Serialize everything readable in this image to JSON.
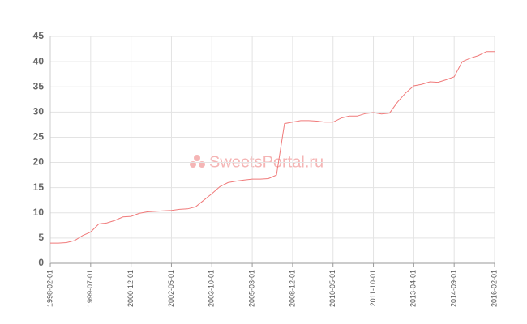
{
  "chart_data": {
    "type": "line",
    "watermark": "SweetsPortal.ru",
    "categories": [
      "1998-02-01",
      null,
      null,
      null,
      null,
      "1999-07-01",
      null,
      null,
      null,
      null,
      "2000-12-01",
      null,
      null,
      null,
      null,
      "2002-05-01",
      null,
      null,
      null,
      null,
      "2003-10-01",
      null,
      null,
      null,
      null,
      "2005-03-01",
      null,
      null,
      null,
      null,
      "2008-12-01",
      null,
      null,
      null,
      null,
      "2010-05-01",
      null,
      null,
      null,
      null,
      "2011-10-01",
      null,
      null,
      null,
      null,
      "2013-04-01",
      null,
      null,
      null,
      null,
      "2014-09-01",
      null,
      null,
      null,
      null,
      "2016-02-01"
    ],
    "values": [
      4.0,
      4.0,
      4.1,
      4.5,
      5.5,
      6.2,
      7.8,
      8.0,
      8.5,
      9.2,
      9.3,
      9.9,
      10.2,
      10.3,
      10.4,
      10.5,
      10.7,
      10.8,
      11.2,
      12.5,
      13.8,
      15.2,
      16.0,
      16.3,
      16.5,
      16.7,
      16.7,
      16.8,
      17.5,
      27.7,
      28.0,
      28.3,
      28.3,
      28.2,
      28.0,
      28.0,
      28.8,
      29.2,
      29.2,
      29.7,
      29.9,
      29.6,
      29.8,
      32.0,
      33.8,
      35.2,
      35.5,
      36.0,
      35.9,
      36.4,
      37.0,
      40.0,
      40.7,
      41.2,
      42.0,
      42.0
    ],
    "color": "#f07a7a",
    "ylim": [
      0,
      45
    ],
    "yticks": [
      0,
      5,
      10,
      15,
      20,
      25,
      30,
      35,
      40,
      45
    ],
    "grid": true
  }
}
